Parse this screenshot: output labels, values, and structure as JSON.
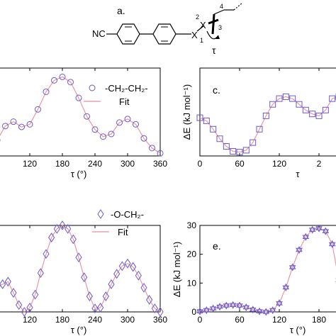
{
  "scheme": {
    "panel_letter": "a.",
    "substituent": "NC",
    "atom_x_top": "X",
    "atom_x_bottom": "X",
    "label_1": "1",
    "label_2": "2",
    "label_3": "3",
    "label_4": "4",
    "tau": "τ"
  },
  "chart_data": [
    {
      "id": "b",
      "type": "scatter",
      "panel_letter": "",
      "xlabel": "τ (°)",
      "ylabel": "",
      "xlim": [
        60,
        360
      ],
      "ylim": [
        0,
        1.0
      ],
      "xticks": [
        "120",
        "180",
        "240",
        "300",
        "360"
      ],
      "yticks": [],
      "legend_position": "top-right",
      "series": [
        {
          "name": "-CH₂-CH₂-",
          "kind": "markers",
          "marker": "circle",
          "color": "#6a5acd",
          "x": [
            60,
            75,
            90,
            105,
            120,
            135,
            150,
            165,
            180,
            195,
            210,
            225,
            240,
            255,
            270,
            285,
            300,
            315,
            330,
            345,
            360
          ],
          "y": [
            0.18,
            0.34,
            0.39,
            0.33,
            0.36,
            0.53,
            0.73,
            0.86,
            0.9,
            0.84,
            0.66,
            0.45,
            0.3,
            0.22,
            0.25,
            0.38,
            0.42,
            0.36,
            0.2,
            0.09,
            0.03
          ]
        },
        {
          "name": "Fit",
          "kind": "line",
          "color": "#e8909a",
          "x": [
            60,
            75,
            90,
            105,
            120,
            135,
            150,
            165,
            180,
            195,
            210,
            225,
            240,
            255,
            270,
            285,
            300,
            315,
            330,
            345,
            360
          ],
          "y": [
            0.18,
            0.34,
            0.39,
            0.33,
            0.36,
            0.53,
            0.73,
            0.86,
            0.9,
            0.84,
            0.66,
            0.45,
            0.3,
            0.22,
            0.25,
            0.38,
            0.42,
            0.36,
            0.2,
            0.09,
            0.03
          ]
        }
      ]
    },
    {
      "id": "c",
      "type": "scatter",
      "panel_letter": "c.",
      "xlabel": "τ",
      "ylabel": "ΔE (kJ mol⁻¹)",
      "xlim": [
        0,
        210
      ],
      "ylim": [
        -1,
        22
      ],
      "xticks": [
        "0",
        "60",
        "120",
        "2"
      ],
      "yticks": [],
      "legend_position": "none",
      "series": [
        {
          "name": "",
          "kind": "markers",
          "marker": "square",
          "color": "#6a5acd",
          "x": [
            0,
            10,
            20,
            30,
            40,
            50,
            60,
            70,
            80,
            90,
            100,
            110,
            120,
            130,
            140,
            150,
            160,
            170,
            180,
            190,
            200,
            210
          ],
          "y": [
            9,
            8.2,
            6,
            3.5,
            1.5,
            0.2,
            0,
            0.5,
            2.5,
            6,
            9.5,
            12.5,
            14,
            14.5,
            14,
            12.5,
            11,
            10,
            9.5,
            11,
            14,
            14.5
          ]
        },
        {
          "name": "",
          "kind": "line",
          "color": "#e8909a",
          "x": [
            0,
            10,
            20,
            30,
            40,
            50,
            60,
            70,
            80,
            90,
            100,
            110,
            120,
            130,
            140,
            150,
            160,
            170,
            180,
            190,
            200,
            210
          ],
          "y": [
            9,
            8.2,
            6,
            3.5,
            1.5,
            0.2,
            0,
            0.5,
            2.5,
            6,
            9.5,
            12.5,
            14,
            14.5,
            14,
            12.5,
            11,
            10,
            9.5,
            11,
            14,
            14.5
          ]
        }
      ]
    },
    {
      "id": "d",
      "type": "scatter",
      "panel_letter": "",
      "xlabel": "τ (°)",
      "ylabel": "",
      "xlim": [
        60,
        360
      ],
      "ylim": [
        0,
        1.0
      ],
      "xticks": [
        "120",
        "180",
        "240",
        "300",
        "360"
      ],
      "yticks": [],
      "legend_position": "top-right",
      "series": [
        {
          "name": "-O-CH₂-",
          "kind": "markers",
          "marker": "diamond",
          "color": "#6a5acd",
          "x": [
            60,
            70,
            80,
            90,
            100,
            110,
            120,
            130,
            140,
            150,
            160,
            170,
            180,
            190,
            200,
            210,
            220,
            230,
            240,
            250,
            260,
            270,
            280,
            290,
            300,
            310,
            320,
            330,
            340,
            350,
            360
          ],
          "y": [
            0.3,
            0.32,
            0.35,
            0.22,
            0.08,
            0.0,
            0.05,
            0.2,
            0.45,
            0.67,
            0.86,
            0.96,
            1.0,
            0.96,
            0.84,
            0.63,
            0.4,
            0.18,
            0.04,
            0.05,
            0.18,
            0.32,
            0.44,
            0.53,
            0.56,
            0.52,
            0.42,
            0.28,
            0.14,
            0.04,
            0.0
          ]
        },
        {
          "name": "Fit",
          "kind": "line",
          "color": "#e8909a",
          "x": [
            60,
            70,
            80,
            90,
            100,
            110,
            120,
            130,
            140,
            150,
            160,
            170,
            180,
            190,
            200,
            210,
            220,
            230,
            240,
            250,
            260,
            270,
            280,
            290,
            300,
            310,
            320,
            330,
            340,
            350,
            360
          ],
          "y": [
            0.3,
            0.32,
            0.35,
            0.22,
            0.08,
            0.0,
            0.05,
            0.2,
            0.45,
            0.67,
            0.86,
            0.96,
            1.0,
            0.96,
            0.84,
            0.63,
            0.4,
            0.18,
            0.04,
            0.05,
            0.18,
            0.32,
            0.44,
            0.53,
            0.56,
            0.52,
            0.42,
            0.28,
            0.14,
            0.04,
            0.0
          ]
        }
      ]
    },
    {
      "id": "e",
      "type": "scatter",
      "panel_letter": "e.",
      "xlabel": "τ (°)",
      "ylabel": "ΔE (kJ mol⁻¹)",
      "xlim": [
        0,
        210
      ],
      "ylim": [
        0,
        30
      ],
      "xticks": [
        "0",
        "60",
        "120",
        "180",
        "2"
      ],
      "yticks": [
        "0",
        "10",
        "20",
        "30"
      ],
      "legend_position": "none",
      "series": [
        {
          "name": "",
          "kind": "markers",
          "marker": "star",
          "color": "#6a5acd",
          "x": [
            0,
            10,
            20,
            30,
            40,
            50,
            60,
            70,
            80,
            90,
            100,
            110,
            120,
            130,
            140,
            150,
            160,
            170,
            180,
            190,
            200,
            210
          ],
          "y": [
            0.2,
            0.6,
            1.2,
            1.8,
            2.2,
            2.4,
            2.2,
            1.6,
            0.8,
            0.2,
            0,
            0.6,
            3,
            8.5,
            15.5,
            21.5,
            26,
            28.5,
            29,
            28,
            23.5,
            11
          ]
        },
        {
          "name": "",
          "kind": "line",
          "color": "#e8909a",
          "x": [
            0,
            10,
            20,
            30,
            40,
            50,
            60,
            70,
            80,
            90,
            100,
            110,
            120,
            130,
            140,
            150,
            160,
            170,
            180,
            190,
            200,
            210
          ],
          "y": [
            0.2,
            0.6,
            1.2,
            1.8,
            2.2,
            2.4,
            2.2,
            1.6,
            0.8,
            0.2,
            0,
            0.6,
            3,
            8.5,
            15.5,
            21.5,
            26,
            28.5,
            29,
            28,
            23.5,
            11
          ]
        }
      ]
    }
  ]
}
